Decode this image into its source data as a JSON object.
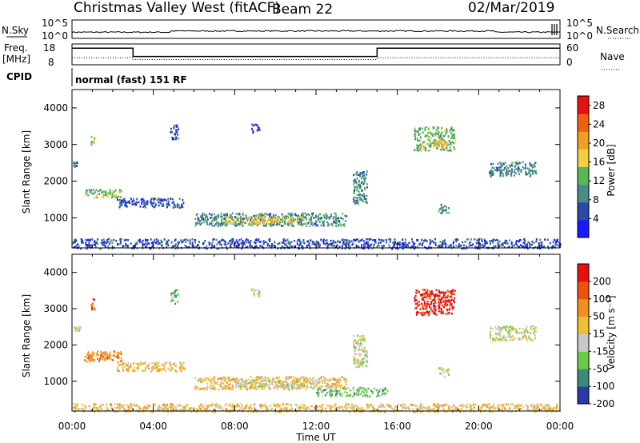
{
  "header": {
    "radar": "Christmas Valley West (fitACF)",
    "beam": "Beam 22",
    "date": "02/Mar/2019"
  },
  "panels": {
    "nsky_label": "N.Sky",
    "nsky_ticks": [
      "10^5",
      "10^0"
    ],
    "nsearch_label": "N.Search",
    "nsearch_ticks": [
      "10^5",
      "10^0"
    ],
    "freq_label": "Freq.",
    "freq_unit": "[MHz]",
    "freq_ticks": [
      "18",
      "8"
    ],
    "nave_label": "Nave",
    "nave_ticks": [
      "60",
      "0"
    ],
    "cpid_label": "CPID",
    "cpid_text": "normal (fast) 151 RF"
  },
  "chart_data": [
    {
      "type": "line",
      "name": "noise-and-frequency",
      "x": [
        0,
        3,
        3,
        15,
        15,
        24
      ],
      "freq_mhz": [
        16,
        16,
        12,
        12,
        16,
        16
      ],
      "nave": [
        20,
        20,
        15,
        15,
        20,
        20
      ],
      "ylim_freq": [
        8,
        18
      ],
      "ylim_nave": [
        0,
        60
      ]
    },
    {
      "type": "heatmap",
      "name": "power",
      "xlabel": "",
      "ylabel": "Slant Range [km]",
      "xlim": [
        0,
        24
      ],
      "ylim": [
        180,
        4500
      ],
      "x_ticks": [
        "00:00",
        "04:00",
        "08:00",
        "12:00",
        "16:00",
        "20:00",
        "00:00"
      ],
      "y_ticks": [
        "1000",
        "2000",
        "3000",
        "4000"
      ],
      "colorbar_label": "Power [dB]",
      "colorbar_ticks": [
        "4",
        "8",
        "12",
        "16",
        "20",
        "24",
        "28"
      ],
      "colorbar_range": [
        0,
        30
      ],
      "colors": [
        "#1a1aff",
        "#2a4aa8",
        "#4a8a8a",
        "#58b858",
        "#f0d040",
        "#f0a020",
        "#f06010",
        "#e81010"
      ],
      "regions": [
        {
          "t0": 0.05,
          "t1": 0.3,
          "r0": 2400,
          "r1": 2550,
          "level": 1
        },
        {
          "t0": 0.9,
          "t1": 1.1,
          "r0": 3000,
          "r1": 3250,
          "level": 3
        },
        {
          "t0": 0.6,
          "t1": 2.4,
          "r0": 1550,
          "r1": 1800,
          "level": 3
        },
        {
          "t0": 2.2,
          "t1": 5.5,
          "r0": 1300,
          "r1": 1550,
          "level": 1
        },
        {
          "t0": 4.8,
          "t1": 5.2,
          "r0": 3150,
          "r1": 3550,
          "level": 1
        },
        {
          "t0": 6.0,
          "t1": 13.5,
          "r0": 800,
          "r1": 1150,
          "level": 2
        },
        {
          "t0": 7.5,
          "t1": 11.5,
          "r0": 850,
          "r1": 1050,
          "level": 4
        },
        {
          "t0": 8.8,
          "t1": 9.2,
          "r0": 3350,
          "r1": 3600,
          "level": 1
        },
        {
          "t0": 13.8,
          "t1": 14.5,
          "r0": 1400,
          "r1": 2300,
          "level": 2
        },
        {
          "t0": 16.8,
          "t1": 18.8,
          "r0": 2850,
          "r1": 3500,
          "level": 3
        },
        {
          "t0": 17.8,
          "t1": 18.4,
          "r0": 2900,
          "r1": 3150,
          "level": 5
        },
        {
          "t0": 18.0,
          "t1": 18.5,
          "r0": 1150,
          "r1": 1400,
          "level": 2
        },
        {
          "t0": 20.5,
          "t1": 22.8,
          "r0": 2150,
          "r1": 2550,
          "level": 2
        },
        {
          "t0": 0.0,
          "t1": 24.0,
          "r0": 180,
          "r1": 450,
          "level": 1
        }
      ]
    },
    {
      "type": "heatmap",
      "name": "velocity",
      "xlabel": "Time UT",
      "ylabel": "Slant Range [km]",
      "xlim": [
        0,
        24
      ],
      "ylim": [
        180,
        4500
      ],
      "x_ticks": [
        "00:00",
        "04:00",
        "08:00",
        "12:00",
        "16:00",
        "20:00",
        "00:00"
      ],
      "y_ticks": [
        "1000",
        "2000",
        "3000",
        "4000"
      ],
      "colorbar_label": "Velocity [m s⁻¹]",
      "colorbar_ticks": [
        "200",
        "100",
        "50",
        "15",
        "-15",
        "-50",
        "-100",
        "-200"
      ],
      "colorbar_range": [
        -250,
        250
      ],
      "colors": [
        "#2a3aa8",
        "#3a8a7a",
        "#66cc44",
        "#c8c8c8",
        "#f0c030",
        "#f09020",
        "#f05010",
        "#e81010"
      ],
      "regions": [
        {
          "t0": 0.05,
          "t1": 0.4,
          "r0": 2400,
          "r1": 2550,
          "level": 3
        },
        {
          "t0": 0.9,
          "t1": 1.1,
          "r0": 3000,
          "r1": 3300,
          "level": 6
        },
        {
          "t0": 0.6,
          "t1": 2.4,
          "r0": 1550,
          "r1": 1850,
          "level": 5
        },
        {
          "t0": 2.2,
          "t1": 5.5,
          "r0": 1300,
          "r1": 1550,
          "level": 4
        },
        {
          "t0": 4.8,
          "t1": 5.2,
          "r0": 3150,
          "r1": 3550,
          "level": 2
        },
        {
          "t0": 6.0,
          "t1": 13.5,
          "r0": 800,
          "r1": 1150,
          "level": 4
        },
        {
          "t0": 8.0,
          "t1": 12.0,
          "r0": 850,
          "r1": 1050,
          "level": 3
        },
        {
          "t0": 8.8,
          "t1": 9.2,
          "r0": 3350,
          "r1": 3600,
          "level": 3
        },
        {
          "t0": 12.0,
          "t1": 15.5,
          "r0": 600,
          "r1": 850,
          "level": 2
        },
        {
          "t0": 13.8,
          "t1": 14.5,
          "r0": 1400,
          "r1": 2300,
          "level": 3
        },
        {
          "t0": 16.8,
          "t1": 18.8,
          "r0": 2850,
          "r1": 3550,
          "level": 7
        },
        {
          "t0": 18.0,
          "t1": 18.5,
          "r0": 1150,
          "r1": 1400,
          "level": 3
        },
        {
          "t0": 20.5,
          "t1": 22.8,
          "r0": 2150,
          "r1": 2550,
          "level": 3
        },
        {
          "t0": 0.0,
          "t1": 24.0,
          "r0": 180,
          "r1": 400,
          "level": 4
        }
      ]
    }
  ]
}
